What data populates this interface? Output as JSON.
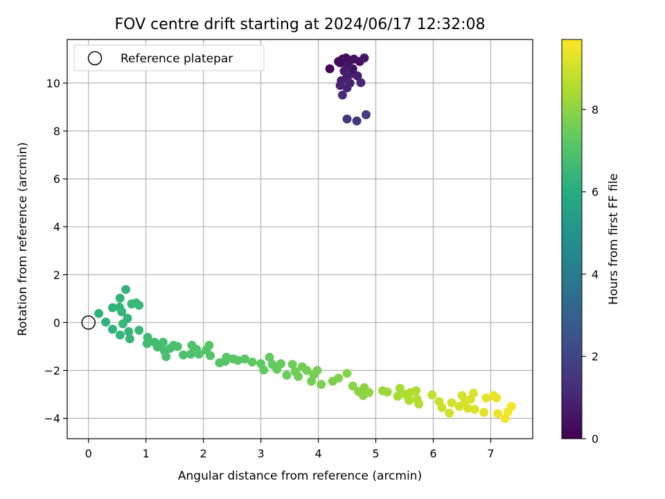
{
  "chart_data": {
    "type": "scatter",
    "title": "FOV centre drift starting at 2024/06/17 12:32:08",
    "xlabel": "Angular distance from reference (arcmin)",
    "ylabel": "Rotation from reference (arcmin)",
    "xlim": [
      -0.37,
      7.73
    ],
    "ylim": [
      -4.85,
      11.82
    ],
    "xticks": [
      0,
      1,
      2,
      3,
      4,
      5,
      6,
      7
    ],
    "yticks": [
      -4,
      -2,
      0,
      2,
      4,
      6,
      8,
      10
    ],
    "grid": true,
    "legend": {
      "position": "top-left",
      "entries": [
        "Reference platepar"
      ]
    },
    "reference_point": {
      "label": "Reference platepar",
      "x": 0,
      "y": 0
    },
    "colorbar": {
      "label": "Hours from first FF file",
      "colormap": "viridis",
      "range": [
        0,
        9.7
      ],
      "ticks": [
        0,
        2,
        4,
        6,
        8
      ]
    },
    "series": [
      {
        "values_are": "x, y, hours",
        "points": [
          [
            4.2,
            10.6,
            0.1
          ],
          [
            4.38,
            10.85,
            0.2
          ],
          [
            4.42,
            11.0,
            0.3
          ],
          [
            4.48,
            11.05,
            0.35
          ],
          [
            4.55,
            10.95,
            0.4
          ],
          [
            4.62,
            11.0,
            0.45
          ],
          [
            4.72,
            10.9,
            0.5
          ],
          [
            4.8,
            11.05,
            0.55
          ],
          [
            4.5,
            10.7,
            0.6
          ],
          [
            4.45,
            10.5,
            0.65
          ],
          [
            4.6,
            10.4,
            0.7
          ],
          [
            4.68,
            10.3,
            0.75
          ],
          [
            4.5,
            10.2,
            0.8
          ],
          [
            4.4,
            10.1,
            0.85
          ],
          [
            4.55,
            10.0,
            0.9
          ],
          [
            4.38,
            9.9,
            0.95
          ],
          [
            4.5,
            9.8,
            1.0
          ],
          [
            4.74,
            10.02,
            1.05
          ],
          [
            4.42,
            9.5,
            1.2
          ],
          [
            4.5,
            8.5,
            1.5
          ],
          [
            4.67,
            8.42,
            1.6
          ],
          [
            4.83,
            8.68,
            1.7
          ],
          [
            4.35,
            10.9,
            0.25
          ],
          [
            4.6,
            10.6,
            0.5
          ],
          [
            4.5,
            10.35,
            0.85
          ],
          [
            0.18,
            0.38,
            6.2
          ],
          [
            0.3,
            0.02,
            6.2
          ],
          [
            0.42,
            -0.28,
            6.25
          ],
          [
            0.42,
            0.62,
            6.25
          ],
          [
            0.54,
            0.64,
            6.3
          ],
          [
            0.55,
            1.02,
            6.3
          ],
          [
            0.65,
            1.38,
            6.3
          ],
          [
            0.58,
            0.45,
            6.35
          ],
          [
            0.68,
            0.18,
            6.35
          ],
          [
            0.6,
            -0.05,
            6.4
          ],
          [
            0.55,
            -0.52,
            6.4
          ],
          [
            0.7,
            -0.38,
            6.4
          ],
          [
            0.72,
            -0.68,
            6.4
          ],
          [
            0.75,
            0.78,
            6.45
          ],
          [
            0.83,
            0.82,
            6.45
          ],
          [
            0.88,
            0.72,
            6.5
          ],
          [
            0.88,
            -0.32,
            6.5
          ],
          [
            1.03,
            -0.62,
            6.6
          ],
          [
            1.02,
            -0.88,
            6.6
          ],
          [
            1.15,
            -0.82,
            6.7
          ],
          [
            1.2,
            -1.02,
            6.7
          ],
          [
            1.3,
            -0.82,
            6.75
          ],
          [
            1.32,
            -1.18,
            6.75
          ],
          [
            1.35,
            -1.42,
            6.8
          ],
          [
            1.42,
            -1.08,
            6.8
          ],
          [
            1.48,
            -0.95,
            6.85
          ],
          [
            1.55,
            -1.0,
            6.85
          ],
          [
            1.65,
            -1.35,
            6.9
          ],
          [
            1.78,
            -1.32,
            6.9
          ],
          [
            1.8,
            -0.95,
            6.95
          ],
          [
            1.88,
            -1.12,
            6.95
          ],
          [
            1.92,
            -1.32,
            7.0
          ],
          [
            2.05,
            -1.15,
            7.0
          ],
          [
            2.1,
            -0.95,
            7.05
          ],
          [
            2.12,
            -1.38,
            7.05
          ],
          [
            2.28,
            -1.68,
            7.1
          ],
          [
            2.38,
            -1.62,
            7.1
          ],
          [
            2.4,
            -1.45,
            7.15
          ],
          [
            2.52,
            -1.52,
            7.15
          ],
          [
            2.6,
            -1.58,
            7.2
          ],
          [
            2.72,
            -1.52,
            7.2
          ],
          [
            2.85,
            -1.65,
            7.25
          ],
          [
            3.0,
            -1.72,
            7.3
          ],
          [
            3.05,
            -1.98,
            7.3
          ],
          [
            3.15,
            -1.45,
            7.35
          ],
          [
            3.2,
            -1.75,
            7.35
          ],
          [
            3.28,
            -1.95,
            7.4
          ],
          [
            3.35,
            -1.72,
            7.4
          ],
          [
            3.45,
            -2.2,
            7.45
          ],
          [
            3.55,
            -1.75,
            7.5
          ],
          [
            3.6,
            -2.05,
            7.5
          ],
          [
            3.65,
            -2.25,
            7.55
          ],
          [
            3.72,
            -1.85,
            7.55
          ],
          [
            3.8,
            -2.0,
            7.6
          ],
          [
            3.88,
            -2.45,
            7.6
          ],
          [
            3.92,
            -2.18,
            7.65
          ],
          [
            3.98,
            -2.0,
            7.65
          ],
          [
            4.05,
            -2.58,
            7.7
          ],
          [
            4.25,
            -2.45,
            7.75
          ],
          [
            4.35,
            -2.32,
            7.8
          ],
          [
            4.5,
            -2.12,
            7.85
          ],
          [
            4.6,
            -2.65,
            7.9
          ],
          [
            4.7,
            -2.88,
            7.95
          ],
          [
            4.78,
            -3.05,
            8.0
          ],
          [
            4.8,
            -2.72,
            8.0
          ],
          [
            4.88,
            -2.92,
            8.05
          ],
          [
            5.12,
            -2.85,
            8.2
          ],
          [
            5.2,
            -2.9,
            8.25
          ],
          [
            5.38,
            -3.08,
            8.4
          ],
          [
            5.42,
            -2.75,
            8.4
          ],
          [
            5.52,
            -3.0,
            8.5
          ],
          [
            5.58,
            -3.25,
            8.5
          ],
          [
            5.6,
            -2.92,
            8.55
          ],
          [
            5.7,
            -2.85,
            8.55
          ],
          [
            5.72,
            -3.2,
            8.6
          ],
          [
            5.75,
            -3.4,
            8.6
          ],
          [
            5.98,
            -3.02,
            8.8
          ],
          [
            6.1,
            -3.3,
            8.9
          ],
          [
            6.15,
            -3.55,
            8.95
          ],
          [
            6.28,
            -3.78,
            9.0
          ],
          [
            6.32,
            -3.35,
            9.0
          ],
          [
            6.45,
            -3.5,
            9.05
          ],
          [
            6.5,
            -3.05,
            9.05
          ],
          [
            6.55,
            -3.3,
            9.1
          ],
          [
            6.6,
            -3.58,
            9.1
          ],
          [
            6.65,
            -3.2,
            9.15
          ],
          [
            6.7,
            -2.95,
            9.15
          ],
          [
            6.72,
            -3.62,
            9.2
          ],
          [
            6.88,
            -3.75,
            9.25
          ],
          [
            6.92,
            -3.15,
            9.3
          ],
          [
            7.05,
            -3.05,
            9.35
          ],
          [
            7.1,
            -3.15,
            9.4
          ],
          [
            7.12,
            -3.8,
            9.45
          ],
          [
            7.25,
            -4.0,
            9.5
          ],
          [
            7.3,
            -3.72,
            9.55
          ],
          [
            7.36,
            -3.5,
            9.6
          ]
        ]
      }
    ]
  }
}
